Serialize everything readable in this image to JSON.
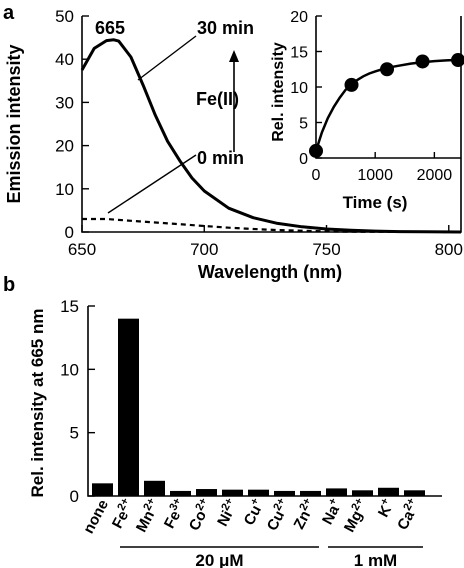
{
  "chart_data": [
    {
      "panel": "a",
      "type": "line",
      "xlabel": "Wavelength (nm)",
      "ylabel": "Emission intensity",
      "xlim": [
        650,
        805
      ],
      "ylim": [
        0,
        50
      ],
      "xticks": [
        650,
        700,
        750,
        800
      ],
      "yticks": [
        0,
        10,
        20,
        30,
        40,
        50
      ],
      "grid": false,
      "series": [
        {
          "name": "30 min",
          "style": "solid",
          "x": [
            650,
            655,
            660,
            663,
            665,
            670,
            675,
            680,
            685,
            690,
            695,
            700,
            710,
            720,
            730,
            740,
            750,
            760,
            770,
            780,
            790,
            805
          ],
          "y": [
            37.5,
            42.5,
            44.3,
            44.5,
            44.2,
            40.5,
            34,
            27,
            21,
            16.5,
            12.5,
            9.5,
            5.5,
            3.3,
            2.0,
            1.2,
            0.7,
            0.4,
            0.2,
            0.1,
            0.05,
            0
          ]
        },
        {
          "name": "0 min",
          "style": "dashed",
          "x": [
            650,
            660,
            670,
            680,
            690,
            700,
            710,
            720,
            730,
            740,
            750,
            760,
            780,
            805
          ],
          "y": [
            3.0,
            3.0,
            2.6,
            2.2,
            1.8,
            1.4,
            1.0,
            0.7,
            0.45,
            0.3,
            0.15,
            0.08,
            0.02,
            0
          ]
        }
      ],
      "annotations": {
        "peak": "665",
        "top": "30 min",
        "bottom": "0 min",
        "analyte": "Fe(II)"
      }
    },
    {
      "panel": "a-inset",
      "type": "scatter",
      "xlabel": "Time (s)",
      "ylabel": "Rel. intensity",
      "xlim": [
        0,
        2450
      ],
      "ylim": [
        0,
        20
      ],
      "xticks": [
        0,
        1000,
        2000
      ],
      "yticks": [
        0,
        5,
        10,
        15,
        20
      ],
      "points": {
        "x": [
          0,
          600,
          1200,
          1800,
          2400
        ],
        "y": [
          1.0,
          10.3,
          12.5,
          13.6,
          13.8
        ]
      },
      "fit": {
        "x": [
          0,
          100,
          200,
          300,
          400,
          500,
          600,
          700,
          800,
          900,
          1000,
          1200,
          1400,
          1600,
          1800,
          2000,
          2200,
          2450
        ],
        "y": [
          1.0,
          3.6,
          5.6,
          7.2,
          8.5,
          9.6,
          10.4,
          11.0,
          11.5,
          11.9,
          12.2,
          12.7,
          13.0,
          13.3,
          13.5,
          13.65,
          13.75,
          13.85
        ]
      }
    },
    {
      "panel": "b",
      "type": "bar",
      "ylabel": "Rel. intensity at 665 nm",
      "ylim": [
        0,
        15
      ],
      "yticks": [
        0,
        5,
        10,
        15
      ],
      "categories": [
        {
          "base": "none",
          "sup": ""
        },
        {
          "base": "Fe",
          "sup": "2+"
        },
        {
          "base": "Mn",
          "sup": "2+"
        },
        {
          "base": "Fe",
          "sup": "3+"
        },
        {
          "base": "Co",
          "sup": "2+"
        },
        {
          "base": "Ni",
          "sup": "2+"
        },
        {
          "base": "Cu",
          "sup": "+"
        },
        {
          "base": "Cu",
          "sup": "2+"
        },
        {
          "base": "Zn",
          "sup": "2+"
        },
        {
          "base": "Na",
          "sup": "+"
        },
        {
          "base": "Mg",
          "sup": "2+"
        },
        {
          "base": "K",
          "sup": "+"
        },
        {
          "base": "Ca",
          "sup": "2+"
        }
      ],
      "values": [
        1.0,
        14.0,
        1.2,
        0.4,
        0.55,
        0.5,
        0.5,
        0.4,
        0.4,
        0.6,
        0.45,
        0.65,
        0.45
      ],
      "groups": [
        {
          "label": "20 μM",
          "from": 1,
          "to": 8
        },
        {
          "label": "1 mM",
          "from": 9,
          "to": 12
        }
      ]
    }
  ],
  "labels": {
    "panel_a": "a",
    "panel_b": "b"
  },
  "colors": {
    "ink": "#000000",
    "background": "#ffffff"
  }
}
